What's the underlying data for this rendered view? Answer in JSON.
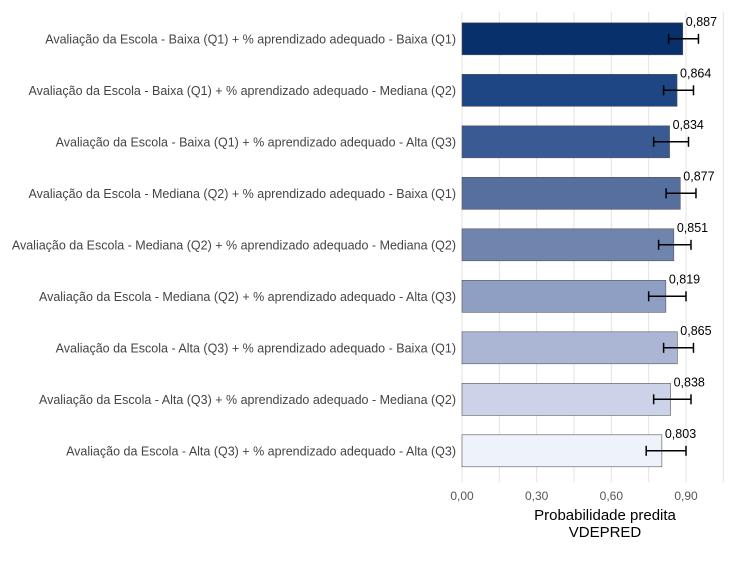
{
  "chart_data": {
    "type": "bar",
    "orientation": "horizontal",
    "categories": [
      "Avaliação da Escola - Baixa (Q1) + % aprendizado adequado - Baixa (Q1)",
      "Avaliação da Escola - Baixa (Q1) + % aprendizado adequado - Mediana (Q2)",
      "Avaliação da Escola - Baixa (Q1) + % aprendizado adequado - Alta (Q3)",
      "Avaliação da Escola - Mediana (Q2) + % aprendizado adequado - Baixa (Q1)",
      "Avaliação da Escola - Mediana (Q2) + % aprendizado adequado - Mediana (Q2)",
      "Avaliação da Escola - Mediana (Q2) + % aprendizado adequado - Alta (Q3)",
      "Avaliação da Escola - Alta (Q3) + % aprendizado adequado -  Baixa (Q1)",
      "Avaliação da Escola - Alta (Q3) + % aprendizado adequado -  Mediana (Q2)",
      "Avaliação da Escola - Alta (Q3) + % aprendizado adequado - Alta (Q3)"
    ],
    "values": [
      0.887,
      0.864,
      0.834,
      0.877,
      0.851,
      0.819,
      0.865,
      0.838,
      0.803
    ],
    "value_labels": [
      "0,887",
      "0,864",
      "0,834",
      "0,877",
      "0,851",
      "0,819",
      "0,865",
      "0,838",
      "0,803"
    ],
    "error_low": [
      0.83,
      0.81,
      0.77,
      0.82,
      0.79,
      0.75,
      0.81,
      0.77,
      0.74
    ],
    "error_high": [
      0.95,
      0.93,
      0.91,
      0.94,
      0.92,
      0.9,
      0.93,
      0.92,
      0.9
    ],
    "colors": [
      "#08306b",
      "#1e4584",
      "#395a93",
      "#566f9f",
      "#7085ad",
      "#8f9fc3",
      "#abb6d5",
      "#ccd3e8",
      "#eef2fb"
    ],
    "xlim": [
      0,
      1.05
    ],
    "xticks": [
      0,
      0.3,
      0.6,
      0.9
    ],
    "xtick_labels": [
      "0,00",
      "0,30",
      "0,60",
      "0,90"
    ],
    "xlabel": "Probabilidade predita",
    "xlabel2": "VDEPRED",
    "ylabel": "",
    "title": "",
    "grid": true
  }
}
